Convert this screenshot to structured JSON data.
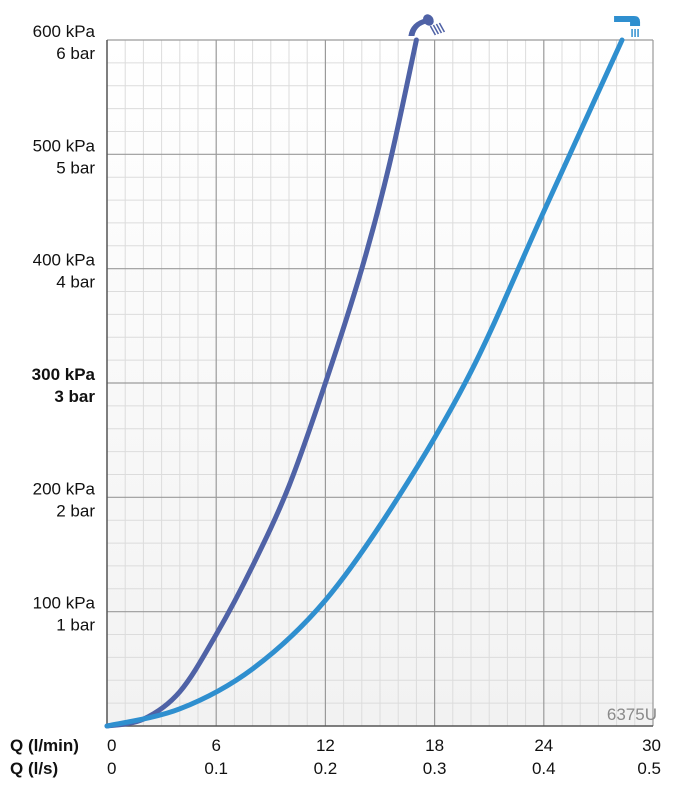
{
  "chart_data": {
    "type": "line",
    "x_axes": [
      {
        "name": "Q (l/min)",
        "ticks": [
          "0",
          "6",
          "12",
          "18",
          "24",
          "30"
        ],
        "range": [
          0,
          30
        ]
      },
      {
        "name": "Q (l/s)",
        "ticks": [
          "0",
          "0.1",
          "0.2",
          "0.3",
          "0.4",
          "0.5"
        ],
        "range": [
          0,
          0.5
        ]
      }
    ],
    "y_range": [
      0,
      600
    ],
    "y_ticks": [
      {
        "value": 600,
        "kpa": "600 kPa",
        "bar": "6 bar",
        "bold": false
      },
      {
        "value": 500,
        "kpa": "500 kPa",
        "bar": "5 bar",
        "bold": false
      },
      {
        "value": 400,
        "kpa": "400 kPa",
        "bar": "4 bar",
        "bold": false
      },
      {
        "value": 300,
        "kpa": "300 kPa",
        "bar": "3 bar",
        "bold": true
      },
      {
        "value": 200,
        "kpa": "200 kPa",
        "bar": "2 bar",
        "bold": false
      },
      {
        "value": 100,
        "kpa": "100 kPa",
        "bar": "1 bar",
        "bold": false
      }
    ],
    "grid": true,
    "series": [
      {
        "icon": "hand-shower-icon",
        "color": "#4f62a6",
        "points": [
          [
            0,
            0
          ],
          [
            2,
            6
          ],
          [
            4,
            30
          ],
          [
            6,
            80
          ],
          [
            8,
            140
          ],
          [
            10,
            210
          ],
          [
            12,
            300
          ],
          [
            14,
            400
          ],
          [
            15.5,
            490
          ],
          [
            17,
            600
          ]
        ]
      },
      {
        "icon": "overhead-shower-icon",
        "color": "#2f8fcf",
        "points": [
          [
            0,
            0
          ],
          [
            4,
            15
          ],
          [
            8,
            50
          ],
          [
            12,
            110
          ],
          [
            16,
            200
          ],
          [
            20,
            310
          ],
          [
            24,
            450
          ],
          [
            28.3,
            600
          ]
        ]
      }
    ],
    "annotation": "6375U"
  }
}
